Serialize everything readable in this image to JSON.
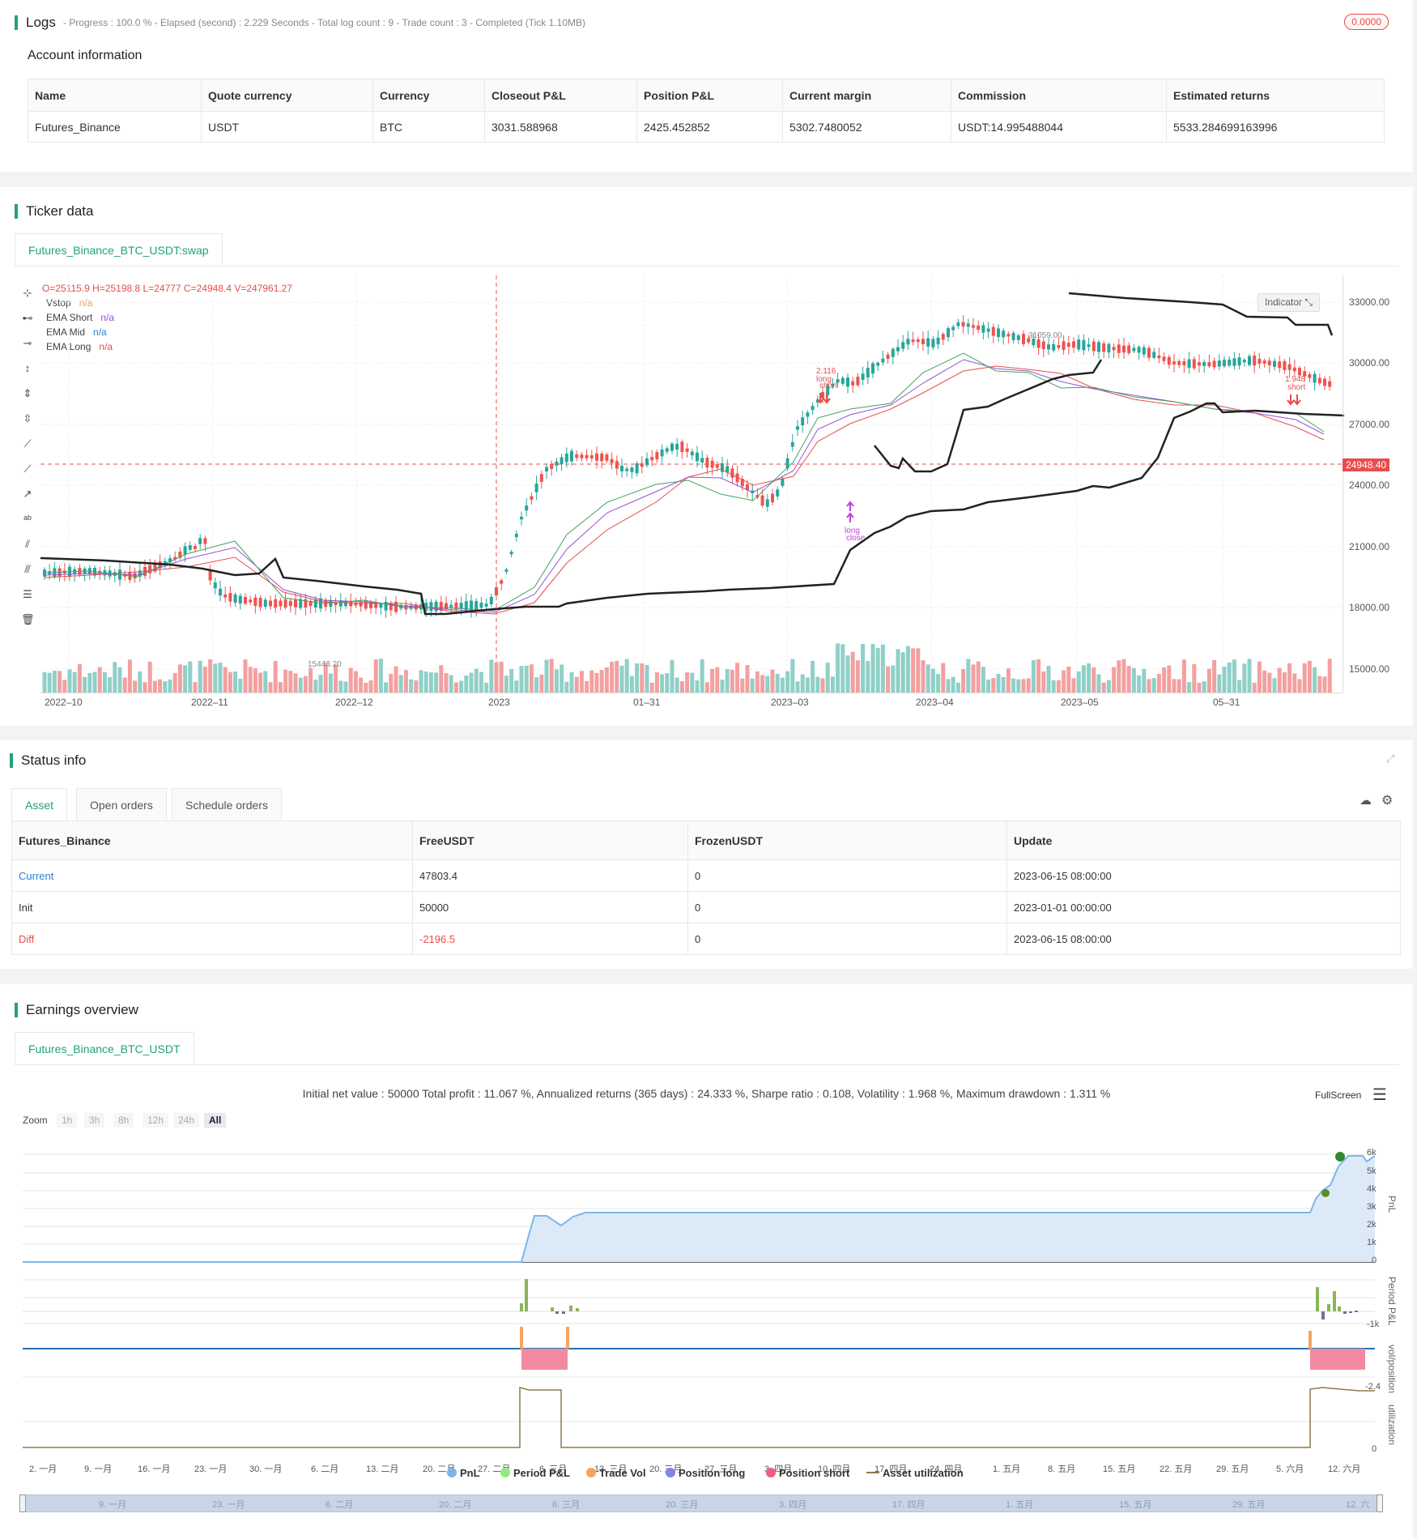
{
  "logs": {
    "title": "Logs",
    "meta": "- Progress : 100.0 % - Elapsed (second) : 2.229  Seconds - Total log count : 9 - Trade count : 3 - Completed (Tick 1.10MB)",
    "badge": "0.0000"
  },
  "account": {
    "title": "Account information",
    "headers": [
      "Name",
      "Quote currency",
      "Currency",
      "Closeout P&L",
      "Position P&L",
      "Current margin",
      "Commission",
      "Estimated returns"
    ],
    "row": [
      "Futures_Binance",
      "USDT",
      "BTC",
      "3031.588968",
      "2425.452852",
      "5302.7480052",
      "USDT:14.995488044",
      "5533.284699163996"
    ]
  },
  "ticker": {
    "title": "Ticker data",
    "tab": "Futures_Binance_BTC_USDT:swap",
    "ohlc": "O=25115.9 H=25198.8 L=24777 C=24948.4 V=247961.27",
    "legend": [
      {
        "name": "Vstop",
        "value": "n/a",
        "color": "#f0a030"
      },
      {
        "name": "EMA Short",
        "value": "n/a",
        "color": "#9b4fd6"
      },
      {
        "name": "EMA Mid",
        "value": "n/a",
        "color": "#2a7fd6"
      },
      {
        "name": "EMA Long",
        "value": "n/a",
        "color": "#e84d4d"
      }
    ],
    "indicator_btn": "Indicator",
    "price_tag": "24948.40",
    "high_label": "31059.00",
    "low_label": "15443.20",
    "y_ticks": [
      "33000.00",
      "30000.00",
      "27000.00",
      "24000.00",
      "21000.00",
      "18000.00",
      "15000.00"
    ],
    "x_ticks": [
      "2022–10",
      "2022–11",
      "2022–12",
      "2023",
      "01–31",
      "2023–03",
      "2023–04",
      "2023–05",
      "05–31"
    ],
    "annotations": {
      "a1_value": "2.116",
      "a1_l1": "long",
      "a1_l2": "short",
      "a2_l1": "long",
      "a2_l2": "close",
      "a3_value": "1.948",
      "a3_l1": "short"
    }
  },
  "status": {
    "title": "Status info",
    "tabs": [
      "Asset",
      "Open orders",
      "Schedule orders"
    ],
    "headers": [
      "Futures_Binance",
      "FreeUSDT",
      "FrozenUSDT",
      "Update"
    ],
    "rows": [
      {
        "label": "Current",
        "free": "47803.4",
        "frozen": "0",
        "update": "2023-06-15 08:00:00"
      },
      {
        "label": "Init",
        "free": "50000",
        "frozen": "0",
        "update": "2023-01-01 00:00:00"
      },
      {
        "label": "Diff",
        "free": "-2196.5",
        "frozen": "0",
        "update": "2023-06-15 08:00:00"
      }
    ]
  },
  "earnings": {
    "title": "Earnings overview",
    "tab": "Futures_Binance_BTC_USDT",
    "stats": "Initial net value : 50000 Total profit : 11.067 %, Annualized returns (365 days) : 24.333 %, Sharpe ratio : 0.108, Volatility : 1.968 %, Maximum drawdown : 1.311 %",
    "fullscreen": "FullScreen",
    "zoom_label": "Zoom",
    "zoom": [
      "1h",
      "3h",
      "8h",
      "12h",
      "24h",
      "All"
    ],
    "pnl_ticks": [
      "6k",
      "5k",
      "4k",
      "3k",
      "2k",
      "1k",
      "0"
    ],
    "axis_titles": [
      "PnL",
      "Period P&L",
      "vol/position",
      "utilization"
    ],
    "period_tick": "-1k",
    "vol_tick": "-2.4",
    "util_tick": "0",
    "x_ticks": [
      "2. 一月",
      "9. 一月",
      "16. 一月",
      "23. 一月",
      "30. 一月",
      "6. 二月",
      "13. 二月",
      "20. 二月",
      "27. 二月",
      "6. 三月",
      "13. 三月",
      "20. 三月",
      "27. 三月",
      "3. 四月",
      "10. 四月",
      "17. 四月",
      "24. 四月",
      "1. 五月",
      "8. 五月",
      "15. 五月",
      "22. 五月",
      "29. 五月",
      "5. 六月",
      "12. 六月"
    ],
    "legend": [
      {
        "name": "PnL",
        "color": "#7cb5ec"
      },
      {
        "name": "Period P&L",
        "color": "#90ed7d"
      },
      {
        "name": "Trade Vol",
        "color": "#f7a35c"
      },
      {
        "name": "Position long",
        "color": "#8085e9"
      },
      {
        "name": "Position short",
        "color": "#f15c80"
      },
      {
        "name": "Asset utilization",
        "color": "#8d7b4a"
      }
    ],
    "navigator_ticks": [
      "9. 一月",
      "23. 一月",
      "6. 二月",
      "20. 二月",
      "6. 三月",
      "20. 三月",
      "3. 四月",
      "17. 四月",
      "1. 五月",
      "15. 五月",
      "29. 五月",
      "12. 六"
    ]
  }
}
